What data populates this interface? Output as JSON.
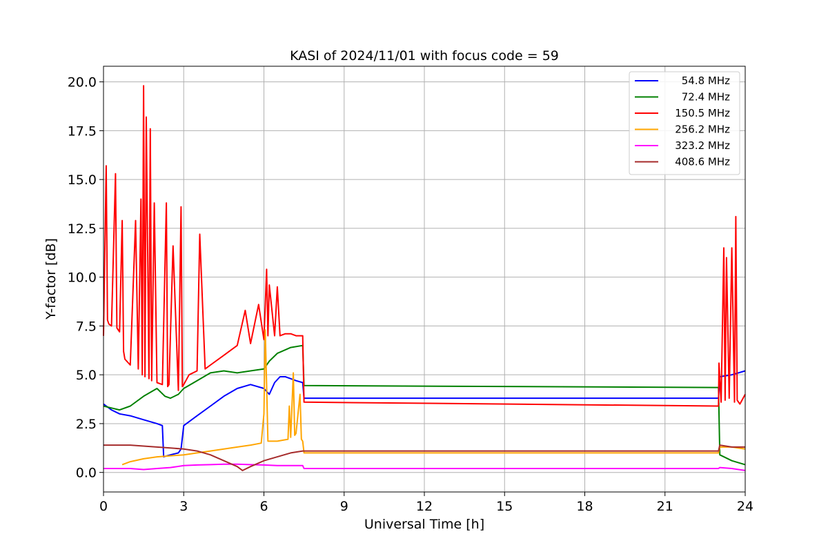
{
  "chart_data": {
    "type": "line",
    "title": "KASI of 2024/11/01 with focus code = 59",
    "xlabel": "Universal Time [h]",
    "ylabel": "Y-factor [dB]",
    "xlim": [
      0,
      24
    ],
    "ylim": [
      -1.0,
      20.8
    ],
    "xticks": [
      0,
      3,
      6,
      9,
      12,
      15,
      18,
      21,
      24
    ],
    "xtick_labels": [
      "0",
      "3",
      "6",
      "9",
      "12",
      "15",
      "18",
      "21",
      "24"
    ],
    "yticks": [
      0,
      2.5,
      5,
      7.5,
      10,
      12.5,
      15,
      17.5,
      20
    ],
    "ytick_labels": [
      "0.0",
      "2.5",
      "5.0",
      "7.5",
      "10.0",
      "12.5",
      "15.0",
      "17.5",
      "20.0"
    ],
    "grid": true,
    "legend_position": "top-right",
    "series": [
      {
        "name": "54.8 MHz",
        "color": "#0000ff",
        "x": [
          0,
          0.3,
          0.6,
          1.0,
          1.5,
          2.0,
          2.2,
          2.25,
          2.5,
          2.8,
          2.9,
          3.0,
          3.5,
          4.0,
          4.5,
          5.0,
          5.5,
          6.0,
          6.2,
          6.4,
          6.6,
          6.8,
          7.0,
          7.2,
          7.45,
          7.5,
          23.0,
          23.05,
          23.5,
          24.0
        ],
        "y": [
          3.5,
          3.2,
          3.0,
          2.9,
          2.7,
          2.5,
          2.4,
          0.8,
          0.9,
          1.0,
          1.2,
          2.4,
          2.9,
          3.4,
          3.9,
          4.3,
          4.5,
          4.3,
          4.0,
          4.6,
          4.9,
          4.9,
          4.8,
          4.7,
          4.6,
          3.8,
          3.8,
          4.9,
          5.0,
          5.2
        ]
      },
      {
        "name": "72.4 MHz",
        "color": "#008000",
        "x": [
          0,
          0.3,
          0.6,
          1.0,
          1.5,
          2.0,
          2.3,
          2.5,
          2.8,
          3.0,
          3.5,
          4.0,
          4.5,
          5.0,
          5.5,
          6.0,
          6.2,
          6.5,
          7.0,
          7.45,
          7.5,
          23.0,
          23.05,
          23.5,
          24.0
        ],
        "y": [
          3.4,
          3.3,
          3.2,
          3.4,
          3.9,
          4.3,
          3.9,
          3.8,
          4.0,
          4.3,
          4.7,
          5.1,
          5.2,
          5.1,
          5.2,
          5.3,
          5.7,
          6.1,
          6.4,
          6.5,
          4.45,
          4.35,
          0.9,
          0.6,
          0.4
        ]
      },
      {
        "name": "150.5 MHz",
        "color": "#ff0000",
        "x": [
          0,
          0.1,
          0.15,
          0.2,
          0.3,
          0.45,
          0.5,
          0.6,
          0.7,
          0.75,
          0.8,
          1.0,
          1.2,
          1.3,
          1.4,
          1.45,
          1.5,
          1.55,
          1.6,
          1.7,
          1.75,
          1.8,
          1.9,
          2.0,
          2.2,
          2.35,
          2.4,
          2.45,
          2.6,
          2.8,
          2.9,
          2.95,
          3.0,
          3.2,
          3.5,
          3.6,
          3.8,
          4.0,
          4.5,
          5.0,
          5.3,
          5.5,
          5.8,
          6.0,
          6.1,
          6.15,
          6.2,
          6.4,
          6.5,
          6.6,
          6.8,
          7.0,
          7.2,
          7.45,
          7.5,
          23.0,
          23.02,
          23.1,
          23.2,
          23.25,
          23.3,
          23.4,
          23.5,
          23.6,
          23.65,
          23.7,
          23.8,
          24.0
        ],
        "y": [
          7.0,
          15.7,
          7.8,
          7.6,
          7.5,
          15.3,
          7.4,
          7.2,
          12.9,
          6.2,
          5.8,
          5.5,
          12.9,
          5.3,
          14.0,
          5.0,
          19.8,
          4.9,
          18.2,
          4.8,
          17.6,
          4.7,
          13.8,
          4.6,
          4.5,
          13.8,
          4.4,
          4.5,
          11.6,
          4.2,
          13.6,
          4.4,
          4.5,
          5.0,
          5.2,
          12.2,
          5.3,
          5.5,
          6.0,
          6.5,
          8.3,
          6.6,
          8.6,
          6.8,
          10.4,
          7.0,
          9.6,
          7.0,
          9.5,
          7.0,
          7.1,
          7.1,
          7.0,
          7.0,
          3.6,
          3.4,
          5.6,
          3.6,
          11.5,
          3.7,
          11.0,
          3.8,
          11.5,
          3.6,
          13.1,
          3.7,
          3.5,
          4.0
        ]
      },
      {
        "name": "256.2 MHz",
        "color": "#ffa500",
        "x": [
          0.7,
          1.0,
          1.5,
          2.0,
          2.5,
          3.0,
          3.5,
          4.0,
          4.5,
          5.0,
          5.5,
          5.9,
          6.0,
          6.05,
          6.1,
          6.15,
          6.2,
          6.5,
          6.9,
          6.95,
          7.0,
          7.1,
          7.15,
          7.2,
          7.35,
          7.4,
          7.45,
          7.5,
          23.0,
          23.05,
          23.5,
          24.0
        ],
        "y": [
          0.4,
          0.55,
          0.7,
          0.8,
          0.85,
          0.9,
          1.0,
          1.1,
          1.2,
          1.3,
          1.4,
          1.5,
          3.0,
          7.3,
          4.5,
          1.6,
          1.6,
          1.6,
          1.7,
          3.4,
          1.8,
          5.1,
          1.9,
          2.0,
          4.0,
          1.7,
          1.6,
          1.0,
          1.0,
          1.3,
          1.3,
          1.2
        ]
      },
      {
        "name": "323.2 MHz",
        "color": "#ff00ff",
        "x": [
          0,
          0.5,
          1.0,
          1.5,
          2.0,
          2.5,
          3.0,
          3.5,
          4.0,
          4.5,
          5.0,
          5.5,
          6.0,
          6.5,
          7.0,
          7.45,
          7.5,
          23.0,
          23.05,
          23.5,
          24.0
        ],
        "y": [
          0.2,
          0.2,
          0.2,
          0.15,
          0.2,
          0.25,
          0.35,
          0.38,
          0.4,
          0.42,
          0.42,
          0.4,
          0.38,
          0.35,
          0.35,
          0.35,
          0.2,
          0.2,
          0.25,
          0.2,
          0.1
        ]
      },
      {
        "name": "408.6 MHz",
        "color": "#a52a2a",
        "x": [
          0,
          0.5,
          1.0,
          1.5,
          2.0,
          2.5,
          3.0,
          3.5,
          4.0,
          4.5,
          5.0,
          5.2,
          5.5,
          6.0,
          6.5,
          7.0,
          7.45,
          7.5,
          23.0,
          23.05,
          23.5,
          24.0
        ],
        "y": [
          1.4,
          1.4,
          1.4,
          1.35,
          1.3,
          1.25,
          1.2,
          1.1,
          0.9,
          0.6,
          0.3,
          0.1,
          0.3,
          0.6,
          0.8,
          1.0,
          1.1,
          1.1,
          1.1,
          1.4,
          1.3,
          1.3
        ]
      }
    ]
  }
}
